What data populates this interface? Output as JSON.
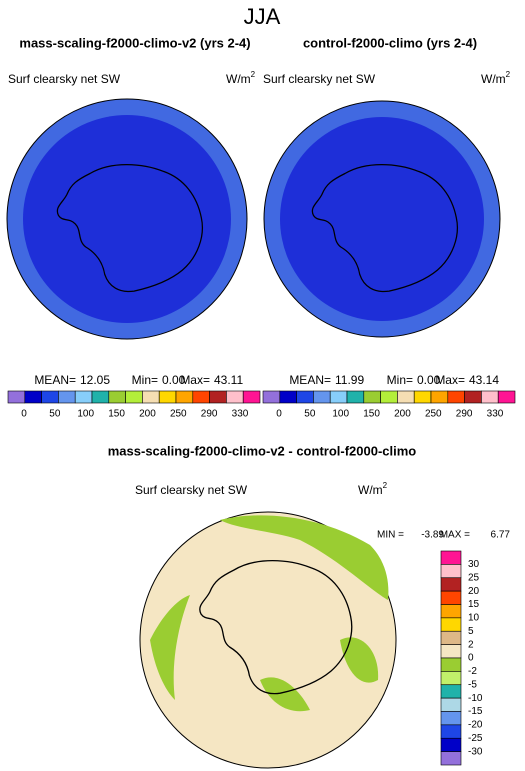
{
  "title": "JJA",
  "panels": [
    {
      "title": "mass-scaling-f2000-climo-v2 (yrs 2-4)",
      "variable": "Surf clearsky net SW",
      "units": {
        "base": "W/m",
        "sup": "2"
      },
      "stats": [
        {
          "label": "MEAN=",
          "value": "12.05"
        },
        {
          "label": "Min=",
          "value": "0.00"
        },
        {
          "label": "Max=",
          "value": "43.11"
        }
      ]
    },
    {
      "title": "control-f2000-climo (yrs 2-4)",
      "variable": "Surf clearsky net SW",
      "units": {
        "base": "W/m",
        "sup": "2"
      },
      "stats": [
        {
          "label": "MEAN=",
          "value": "11.99"
        },
        {
          "label": "Min=",
          "value": "0.00"
        },
        {
          "label": "Max=",
          "value": "43.14"
        }
      ]
    }
  ],
  "colorbar": {
    "labels": [
      "0",
      "50",
      "100",
      "150",
      "200",
      "250",
      "290",
      "330"
    ],
    "colors": [
      "#9370db",
      "#0000c8",
      "#1e46e6",
      "#6495ed",
      "#87cefa",
      "#20b2aa",
      "#9acd32",
      "#b3ee3a",
      "#f5deb3",
      "#ffd700",
      "#ffa500",
      "#ff4500",
      "#b22222",
      "#ffc0cb",
      "#ff1493"
    ]
  },
  "diff": {
    "title": "mass-scaling-f2000-climo-v2 - control-f2000-climo",
    "variable": "Surf clearsky net SW",
    "units": {
      "base": "W/m",
      "sup": "2"
    },
    "stats": [
      {
        "label": "MIN =",
        "value": "-3.89"
      },
      {
        "label": "MAX =",
        "value": "6.77"
      }
    ],
    "colorbar": {
      "labels": [
        "30",
        "25",
        "20",
        "15",
        "10",
        "5",
        "2",
        "0",
        "-2",
        "-5",
        "-10",
        "-15",
        "-20",
        "-25",
        "-30"
      ],
      "colors": [
        "#ff1493",
        "#ffc0cb",
        "#b22222",
        "#ff4500",
        "#ffa500",
        "#ffd700",
        "#deb887",
        "#f5e6c3",
        "#9acd32",
        "#c1f06a",
        "#20b2aa",
        "#add8e6",
        "#6495ed",
        "#1e46e6",
        "#0000c8",
        "#9370db"
      ]
    }
  }
}
